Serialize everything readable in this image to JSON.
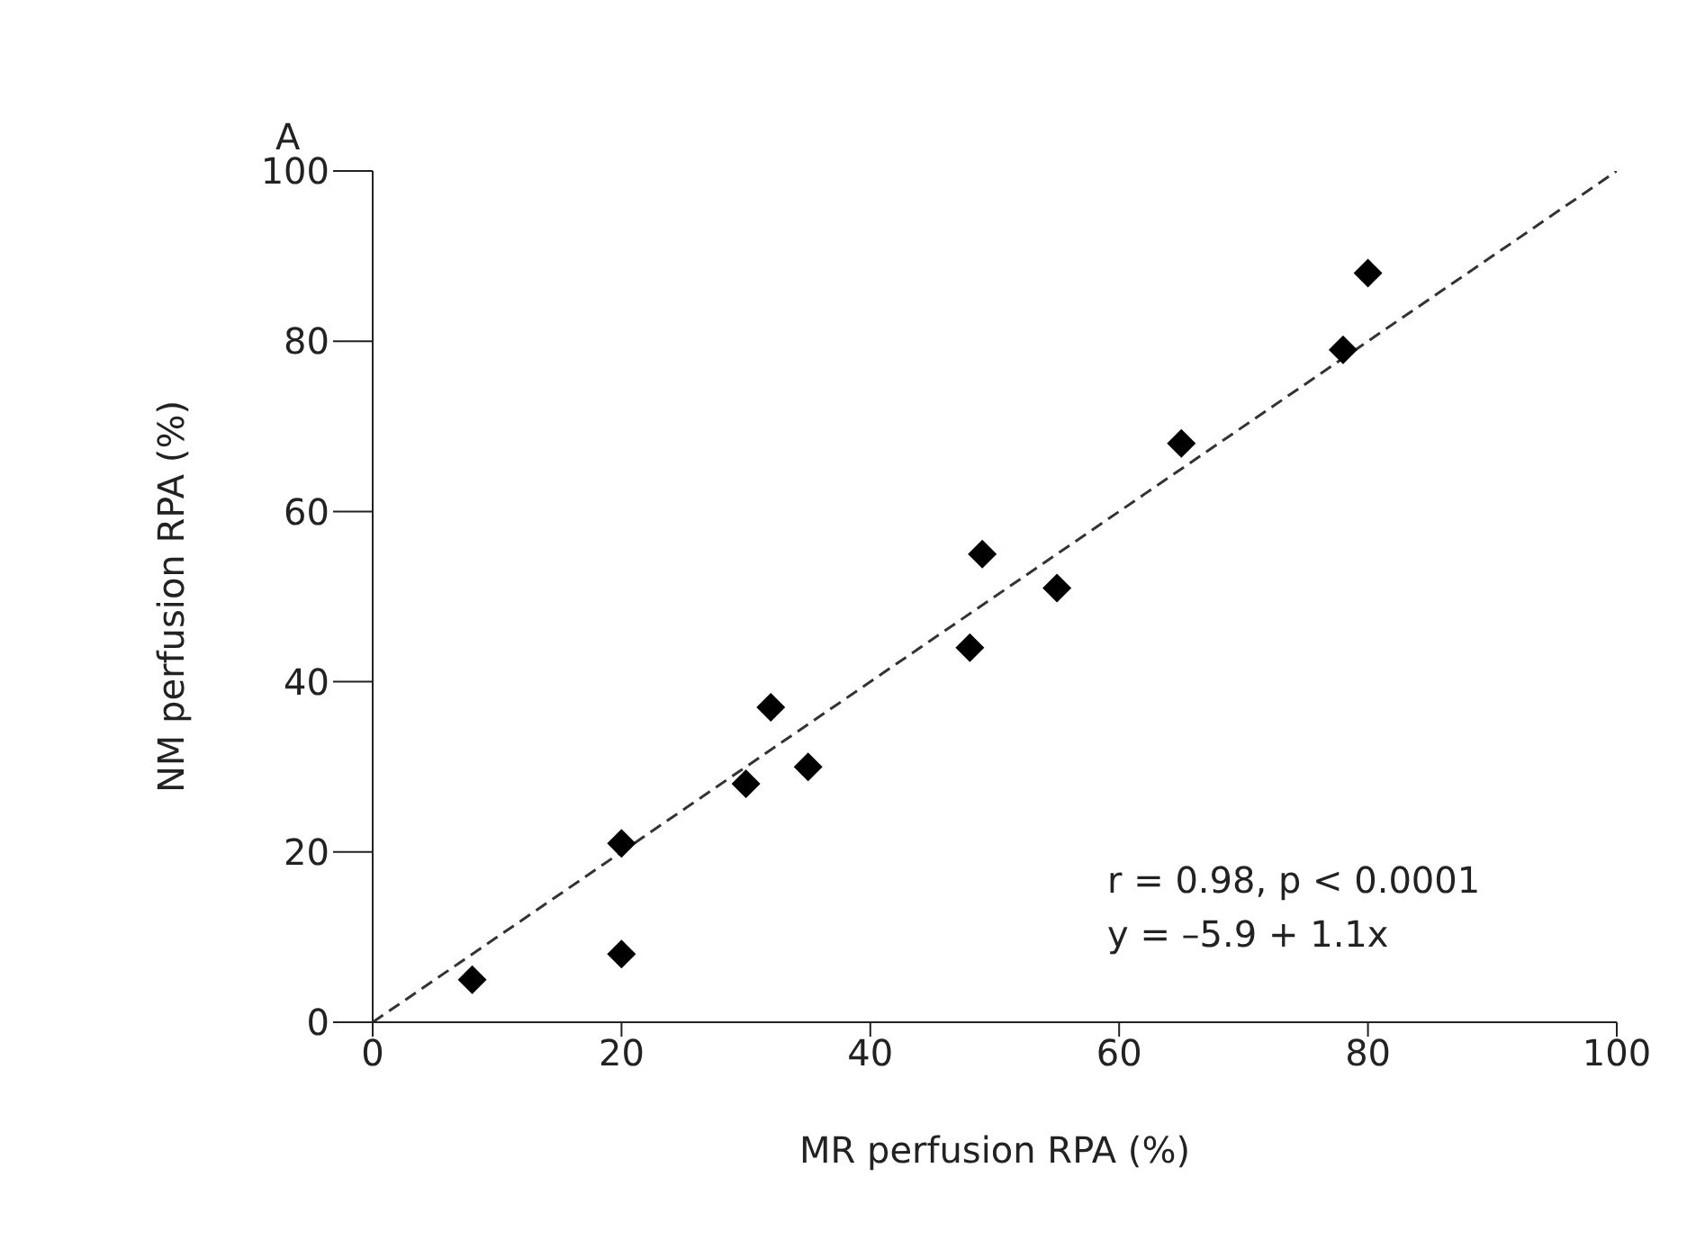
{
  "chart_data": {
    "type": "scatter",
    "title": "A",
    "xlabel": "MR perfusion RPA (%)",
    "ylabel": "NM perfusion RPA (%)",
    "xlim": [
      0,
      100
    ],
    "xticks": [
      0,
      20,
      40,
      60,
      80,
      100
    ],
    "ylim": [
      0,
      100
    ],
    "yticks": [
      0,
      20,
      40,
      60,
      80,
      100
    ],
    "grid": false,
    "legend": false,
    "series": [
      {
        "type": "scatter",
        "color": "#000000",
        "marker": "diamond",
        "x": [
          8,
          20,
          20,
          30,
          32,
          35,
          48,
          49,
          55,
          65,
          78,
          80
        ],
        "values": [
          5,
          8,
          21,
          28,
          37,
          30,
          44,
          55,
          51,
          68,
          79,
          88
        ]
      },
      {
        "type": "line",
        "color": "#333333",
        "marker": "none",
        "line_style": "dashed",
        "x": [
          0,
          100
        ],
        "values": [
          0,
          100
        ]
      }
    ],
    "annotations": [
      "r = 0.98, p < 0.0001",
      "y  = –5.9 + 1.1x"
    ]
  }
}
